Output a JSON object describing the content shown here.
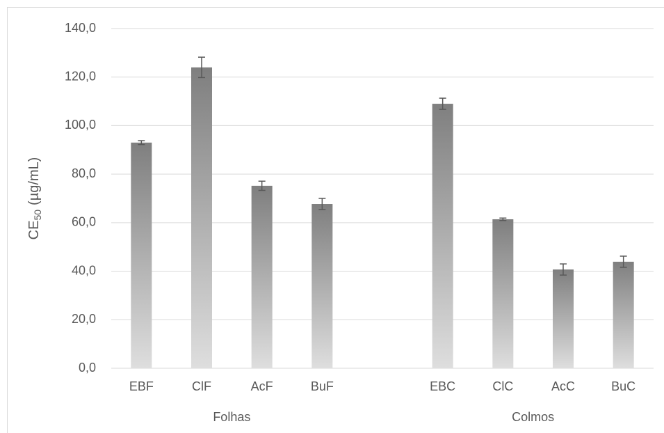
{
  "chart_data": {
    "type": "bar",
    "y_label": [
      "CE",
      "50",
      "(µg/mL)"
    ],
    "categories": [
      "EBF",
      "ClF",
      "AcF",
      "BuF",
      null,
      "EBC",
      "ClC",
      "AcC",
      "BuC"
    ],
    "groups": [
      "Folhas",
      "Colmos"
    ],
    "values": [
      93,
      124,
      75.2,
      67.7,
      null,
      109,
      61.4,
      40.7,
      43.9
    ],
    "errors": [
      0.8,
      4.2,
      1.9,
      2.3,
      null,
      2.3,
      0.5,
      2.3,
      2.3
    ],
    "color": "#7f7f7f",
    "ylim": [
      0,
      140
    ],
    "yticks": [
      {
        "value": 0,
        "label": "0,0"
      },
      {
        "value": 20,
        "label": "20,0"
      },
      {
        "value": 40,
        "label": "40,0"
      },
      {
        "value": 60,
        "label": "60,0"
      },
      {
        "value": 80,
        "label": "80,0"
      },
      {
        "value": 100,
        "label": "100,0"
      },
      {
        "value": 120,
        "label": "120,0"
      },
      {
        "value": 140,
        "label": "140,0"
      }
    ],
    "grid": true
  }
}
